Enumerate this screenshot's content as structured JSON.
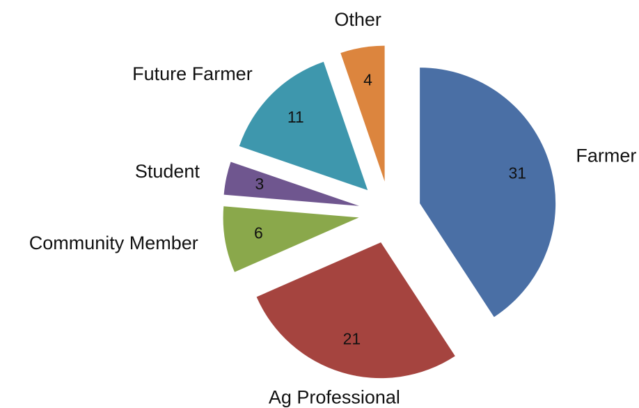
{
  "chart_data": {
    "type": "pie",
    "categories": [
      "Farmer",
      "Ag Professional",
      "Community Member",
      "Student",
      "Future Farmer",
      "Other"
    ],
    "values": [
      31,
      21,
      6,
      3,
      11,
      4
    ],
    "colors": [
      "#4a6fa5",
      "#a5443f",
      "#8aa84b",
      "#6f568f",
      "#3e97ad",
      "#dc853e"
    ],
    "exploded": true
  }
}
